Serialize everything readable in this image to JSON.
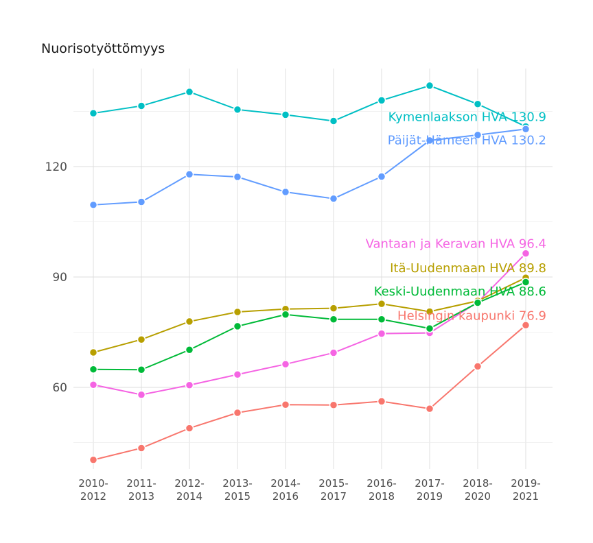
{
  "chart_data": {
    "type": "line",
    "title": "Nuorisotyöttömyys",
    "xlabel": "",
    "ylabel": "",
    "categories": [
      "2010-2012",
      "2011-2013",
      "2012-2014",
      "2013-2015",
      "2014-2016",
      "2015-2017",
      "2016-2018",
      "2017-2019",
      "2018-2020",
      "2019-2021"
    ],
    "yticks": [
      60,
      90,
      120
    ],
    "ylim": [
      40,
      145
    ],
    "grid": true,
    "series": [
      {
        "name": "Kymenlaakson HVA",
        "color": "#00BFC4",
        "label": "Kymenlaakson HVA 130.9",
        "values": [
          134.5,
          136.5,
          140.3,
          135.5,
          134.1,
          132.4,
          138.0,
          142.0,
          137.0,
          130.9
        ]
      },
      {
        "name": "Päijät-Hämeen HVA",
        "color": "#619CFF",
        "label": "Päijät-Hämeen HVA 130.2",
        "values": [
          109.6,
          110.4,
          117.9,
          117.2,
          113.1,
          111.3,
          117.3,
          127.1,
          128.6,
          130.2
        ]
      },
      {
        "name": "Vantaan ja Keravan HVA",
        "color": "#F564E3",
        "label": "Vantaan ja Keravan HVA 96.4",
        "values": [
          60.7,
          58.0,
          60.6,
          63.5,
          66.3,
          69.4,
          74.6,
          74.8,
          83.1,
          96.4
        ]
      },
      {
        "name": "Itä-Uudenmaan HVA",
        "color": "#B79F00",
        "label": "Itä-Uudenmaan HVA 89.8",
        "values": [
          69.5,
          73.0,
          77.9,
          80.5,
          81.3,
          81.5,
          82.7,
          80.6,
          83.5,
          89.8
        ]
      },
      {
        "name": "Keski-Uudenmaan HVA",
        "color": "#00BA38",
        "label": "Keski-Uudenmaan HVA 88.6",
        "values": [
          64.9,
          64.8,
          70.2,
          76.6,
          79.8,
          78.5,
          78.5,
          76.0,
          83.0,
          88.6
        ]
      },
      {
        "name": "Helsingin kaupunki",
        "color": "#F8766D",
        "label": "Helsingin kaupunki 76.9",
        "values": [
          40.3,
          43.5,
          48.9,
          53.1,
          55.3,
          55.2,
          56.2,
          54.2,
          65.7,
          76.9
        ]
      }
    ]
  }
}
